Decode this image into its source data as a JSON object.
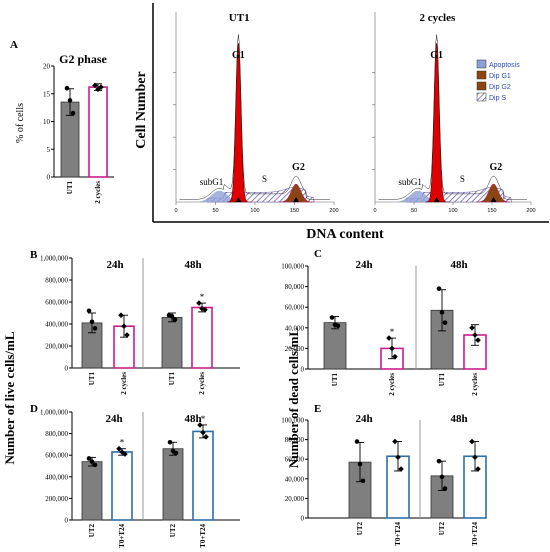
{
  "colors": {
    "gray_bar": "#7f7f7f",
    "magenta_outline": "#c81e8c",
    "blue_outline": "#2d6ea8",
    "g1_fill": "#e00000",
    "g2_fill": "#8b4513",
    "apoptosis_fill": "#8ea0d6",
    "s_hatch": "#5a4fa0"
  },
  "panelA": {
    "letter": "A",
    "title": "G2 phase",
    "ylabel": "% of cells"
  },
  "panelB": {
    "letter": "B",
    "ylabel": "Number of live cells/mL"
  },
  "panelC": {
    "letter": "C",
    "ylabel": "Number of dead cells/mL"
  },
  "panelD": {
    "letter": "D"
  },
  "panelE": {
    "letter": "E"
  },
  "flow": {
    "ylabel": "Cell Number",
    "xlabel": "DNA content",
    "plots": [
      {
        "title": "UT1",
        "g1": "G1",
        "g2": "G2",
        "s": "S",
        "subg1": "subG1"
      },
      {
        "title": "2 cycles",
        "g1": "G1",
        "g2": "G2",
        "s": "S",
        "subg1": "subG1"
      }
    ],
    "xticks": [
      0,
      50,
      100,
      150,
      200
    ],
    "legend": [
      "Apoptosis",
      "Dip G1",
      "Dip G2",
      "Dip S"
    ]
  },
  "chart_data": [
    {
      "id": "A",
      "type": "bar",
      "title": "G2 phase",
      "ylabel": "% of cells",
      "xlabel": "",
      "categories": [
        "UT1",
        "2 cycles"
      ],
      "values": [
        13.5,
        16.2
      ],
      "errors": [
        2.4,
        0.6
      ],
      "points": [
        [
          16.0,
          11.5,
          13.8
        ],
        [
          16.5,
          16.2,
          15.8
        ]
      ],
      "ylim": [
        0,
        20
      ],
      "yticks": [
        0,
        5,
        10,
        15,
        20
      ],
      "styles": [
        "gray",
        "magenta"
      ]
    },
    {
      "id": "B",
      "type": "bar",
      "ylabel": "Number of live cells/mL",
      "groups": [
        "24h",
        "48h"
      ],
      "categories": [
        "UT1",
        "2 cycles",
        "UT1",
        "2 cycles"
      ],
      "values": [
        410000,
        380000,
        460000,
        550000
      ],
      "errors": [
        90000,
        100000,
        40000,
        40000
      ],
      "points": [
        [
          520000,
          360000,
          420000
        ],
        [
          480000,
          300000,
          380000
        ],
        [
          480000,
          440000,
          470000
        ],
        [
          590000,
          530000,
          540000
        ]
      ],
      "significance": [
        "",
        "",
        "",
        "*"
      ],
      "ylim": [
        0,
        1000000
      ],
      "yticks": [
        "0",
        "200,000",
        "400,000",
        "600,000",
        "800,000",
        "1,000,000"
      ],
      "styles": [
        "gray",
        "magenta",
        "gray",
        "magenta"
      ]
    },
    {
      "id": "C",
      "type": "bar",
      "ylabel": "Number of dead cells/mL",
      "groups": [
        "24h",
        "48h"
      ],
      "categories": [
        "UT1",
        "2 cycles",
        "UT1",
        "2 cycles"
      ],
      "values": [
        45000,
        20000,
        57000,
        33000
      ],
      "errors": [
        6000,
        10000,
        20000,
        10000
      ],
      "points": [
        [
          50000,
          42000,
          43000
        ],
        [
          30000,
          12000,
          20000
        ],
        [
          78000,
          45000,
          55000
        ],
        [
          40000,
          28000,
          33000
        ]
      ],
      "significance": [
        "",
        "*",
        "",
        ""
      ],
      "ylim": [
        0,
        100000
      ],
      "yticks": [
        "0",
        "20,000",
        "40,000",
        "60,000",
        "80,000",
        "100,000"
      ],
      "styles": [
        "gray",
        "magenta",
        "gray",
        "magenta"
      ]
    },
    {
      "id": "D",
      "type": "bar",
      "groups": [
        "24h",
        "48h"
      ],
      "categories": [
        "UT2",
        "T0+T24",
        "UT2",
        "T0+T24"
      ],
      "values": [
        540000,
        630000,
        660000,
        820000
      ],
      "errors": [
        40000,
        30000,
        60000,
        60000
      ],
      "points": [
        [
          570000,
          510000,
          540000
        ],
        [
          660000,
          610000,
          630000
        ],
        [
          720000,
          620000,
          640000
        ],
        [
          880000,
          770000,
          810000
        ]
      ],
      "significance": [
        "",
        "*",
        "",
        "*"
      ],
      "ylim": [
        0,
        1000000
      ],
      "yticks": [
        "0",
        "200,000",
        "400,000",
        "600,000",
        "800,000",
        "1,000,000"
      ],
      "styles": [
        "gray",
        "blue",
        "gray",
        "blue"
      ]
    },
    {
      "id": "E",
      "type": "bar",
      "groups": [
        "24h",
        "48h"
      ],
      "categories": [
        "UT2",
        "T0+T24",
        "UT2",
        "T0+T24"
      ],
      "values": [
        57000,
        63000,
        43000,
        63000
      ],
      "errors": [
        20000,
        15000,
        15000,
        15000
      ],
      "points": [
        [
          78000,
          38000,
          55000
        ],
        [
          78000,
          50000,
          62000
        ],
        [
          58000,
          30000,
          42000
        ],
        [
          78000,
          50000,
          62000
        ]
      ],
      "significance": [
        "",
        "",
        "",
        ""
      ],
      "ylim": [
        0,
        100000
      ],
      "yticks": [
        "0",
        "20,000",
        "40,000",
        "60,000",
        "80,000",
        "100,000"
      ],
      "styles": [
        "gray",
        "blue",
        "gray",
        "blue"
      ]
    }
  ]
}
